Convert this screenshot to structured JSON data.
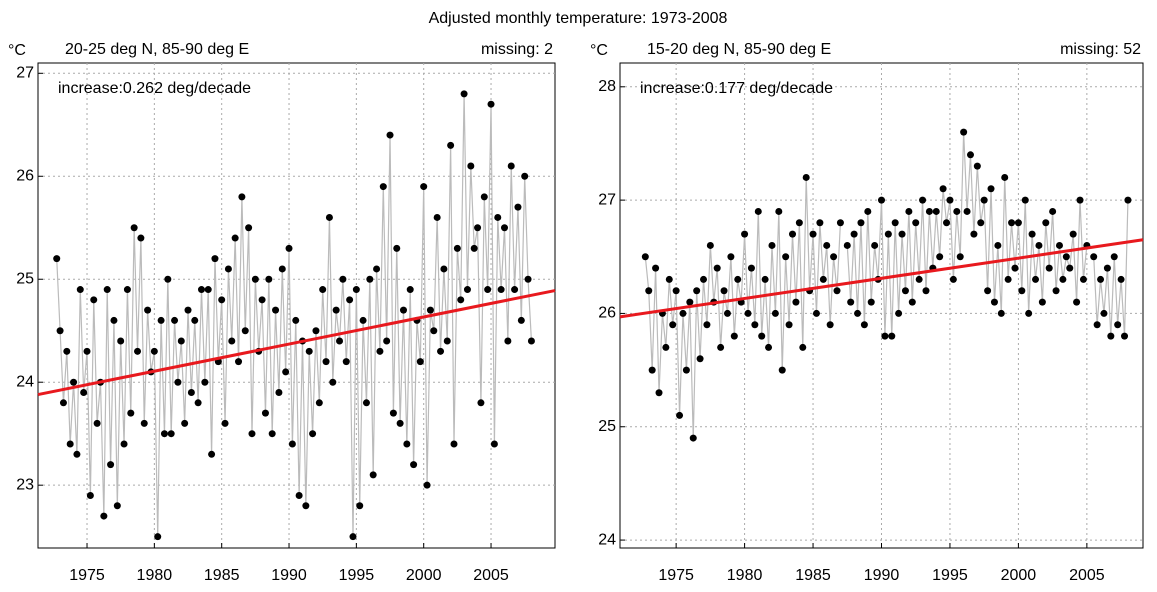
{
  "title": "Adjusted monthly temperature: 1973-2008",
  "chart_data": [
    {
      "type": "line",
      "title": "20-25 deg N, 85-90 deg E",
      "missing_label": "missing: 2",
      "y_unit": "°C",
      "annotation": "increase:0.262 deg/decade",
      "xlim": [
        1971.36,
        2009.75
      ],
      "ylim": [
        22.39,
        27.1
      ],
      "xticks": [
        1975,
        1980,
        1985,
        1990,
        1995,
        2000,
        2005
      ],
      "yticks": [
        23,
        24,
        25,
        26,
        27
      ],
      "grid": true,
      "x": [
        1972.75,
        1973,
        1973.25,
        1973.5,
        1973.75,
        1974,
        1974.25,
        1974.5,
        1974.75,
        1975,
        1975.25,
        1975.5,
        1975.75,
        1976,
        1976.25,
        1976.5,
        1976.75,
        1977,
        1977.25,
        1977.5,
        1977.75,
        1978,
        1978.25,
        1978.5,
        1978.75,
        1979,
        1979.25,
        1979.5,
        1979.75,
        1980,
        1980.25,
        1980.5,
        1980.75,
        1981,
        1981.25,
        1981.5,
        1981.75,
        1982,
        1982.25,
        1982.5,
        1982.75,
        1983,
        1983.25,
        1983.5,
        1983.75,
        1984,
        1984.25,
        1984.5,
        1984.75,
        1985,
        1985.25,
        1985.5,
        1985.75,
        1986,
        1986.25,
        1986.5,
        1986.75,
        1987,
        1987.25,
        1987.5,
        1987.75,
        1988,
        1988.25,
        1988.5,
        1988.75,
        1989,
        1989.25,
        1989.5,
        1989.75,
        1990,
        1990.25,
        1990.5,
        1990.75,
        1991,
        1991.25,
        1991.5,
        1991.75,
        1992,
        1992.25,
        1992.5,
        1992.75,
        1993,
        1993.25,
        1993.5,
        1993.75,
        1994,
        1994.25,
        1994.5,
        1994.75,
        1995,
        1995.25,
        1995.5,
        1995.75,
        1996,
        1996.25,
        1996.5,
        1996.75,
        1997,
        1997.25,
        1997.5,
        1997.75,
        1998,
        1998.25,
        1998.5,
        1998.75,
        1999,
        1999.25,
        1999.5,
        1999.75,
        2000,
        2000.25,
        2000.5,
        2000.75,
        2001,
        2001.25,
        2001.5,
        2001.75,
        2002,
        2002.25,
        2002.5,
        2002.75,
        2003,
        2003.25,
        2003.5,
        2003.75,
        2004,
        2004.25,
        2004.5,
        2004.75,
        2005,
        2005.25,
        2005.5,
        2005.75,
        2006,
        2006.25,
        2006.5,
        2006.75,
        2007,
        2007.25,
        2007.5,
        2007.75,
        2008
      ],
      "series": [
        {
          "color": "#000000",
          "line_color": "#bbbbbb",
          "values": [
            25.2,
            24.5,
            23.8,
            24.3,
            23.4,
            24.0,
            23.3,
            24.9,
            23.9,
            24.3,
            22.9,
            24.8,
            23.6,
            24.0,
            22.7,
            24.9,
            23.2,
            24.6,
            22.8,
            24.4,
            23.4,
            24.9,
            23.7,
            25.5,
            24.3,
            25.4,
            23.6,
            24.7,
            24.1,
            24.3,
            22.5,
            24.6,
            23.5,
            25.0,
            23.5,
            24.6,
            24.0,
            24.4,
            23.6,
            24.7,
            23.9,
            24.6,
            23.8,
            24.9,
            24.0,
            24.9,
            23.3,
            25.2,
            24.2,
            24.8,
            23.6,
            25.1,
            24.4,
            25.4,
            24.2,
            25.8,
            24.5,
            25.5,
            23.5,
            25.0,
            24.3,
            24.8,
            23.7,
            25.0,
            23.5,
            24.7,
            23.9,
            25.1,
            24.1,
            25.3,
            23.4,
            24.6,
            22.9,
            24.4,
            22.8,
            24.3,
            23.5,
            24.5,
            23.8,
            24.9,
            24.2,
            25.6,
            24.0,
            24.7,
            24.4,
            25.0,
            24.2,
            24.8,
            22.5,
            24.9,
            22.8,
            24.6,
            23.8,
            25.0,
            23.1,
            25.1,
            24.3,
            25.9,
            24.4,
            26.4,
            23.7,
            25.3,
            23.6,
            24.7,
            23.4,
            24.9,
            23.2,
            24.6,
            24.2,
            25.9,
            23.0,
            24.7,
            24.5,
            25.6,
            24.3,
            25.1,
            24.4,
            26.3,
            23.4,
            25.3,
            24.8,
            26.8,
            24.9,
            26.1,
            25.3,
            25.5,
            23.8,
            25.8,
            24.9,
            26.7,
            23.4,
            25.6,
            24.9,
            25.5,
            24.4,
            26.1,
            24.9,
            25.7,
            24.6,
            26.0,
            25.0,
            24.4
          ]
        }
      ],
      "trend": {
        "color": "#e8191e",
        "x": [
          1971.36,
          2009.75
        ],
        "values": [
          23.88,
          24.89
        ]
      }
    },
    {
      "type": "line",
      "title": "15-20 deg N, 85-90 deg E",
      "missing_label": "missing: 52",
      "y_unit": "°C",
      "annotation": "increase:0.177 deg/decade",
      "xlim": [
        1970.9,
        2009.1
      ],
      "ylim": [
        23.93,
        28.21
      ],
      "xticks": [
        1975,
        1980,
        1985,
        1990,
        1995,
        2000,
        2005
      ],
      "yticks": [
        24,
        25,
        26,
        27,
        28
      ],
      "grid": true,
      "x": [
        1972.75,
        1973,
        1973.25,
        1973.5,
        1973.75,
        1974,
        1974.25,
        1974.5,
        1974.75,
        1975,
        1975.25,
        1975.5,
        1975.75,
        1976,
        1976.25,
        1976.5,
        1976.75,
        1977,
        1977.25,
        1977.5,
        1977.75,
        1978,
        1978.25,
        1978.5,
        1978.75,
        1979,
        1979.25,
        1979.5,
        1979.75,
        1980,
        1980.25,
        1980.5,
        1980.75,
        1981,
        1981.25,
        1981.5,
        1981.75,
        1982,
        1982.25,
        1982.5,
        1982.75,
        1983,
        1983.25,
        1983.5,
        1983.75,
        1984,
        1984.25,
        1984.5,
        1984.75,
        1985,
        1985.25,
        1985.5,
        1985.75,
        1986,
        1986.25,
        1986.5,
        1986.75,
        1987,
        1987.25,
        1987.5,
        1987.75,
        1988,
        1988.25,
        1988.5,
        1988.75,
        1989,
        1989.25,
        1989.5,
        1989.75,
        1990,
        1990.25,
        1990.5,
        1990.75,
        1991,
        1991.25,
        1991.5,
        1991.75,
        1992,
        1992.25,
        1992.5,
        1992.75,
        1993,
        1993.25,
        1993.5,
        1993.75,
        1994,
        1994.25,
        1994.5,
        1994.75,
        1995,
        1995.25,
        1995.5,
        1995.75,
        1996,
        1996.25,
        1996.5,
        1996.75,
        1997,
        1997.25,
        1997.5,
        1997.75,
        1998,
        1998.25,
        1998.5,
        1998.75,
        1999,
        1999.25,
        1999.5,
        1999.75,
        2000,
        2000.25,
        2000.5,
        2000.75,
        2001,
        2001.25,
        2001.5,
        2001.75,
        2002,
        2002.25,
        2002.5,
        2002.75,
        2003,
        2003.25,
        2003.5,
        2003.75,
        2004,
        2004.25,
        2004.5,
        2004.75,
        2005,
        2005.25,
        2005.5,
        2005.75,
        2006,
        2006.25,
        2006.5,
        2006.75,
        2007,
        2007.25,
        2007.5,
        2007.75,
        2008
      ],
      "series": [
        {
          "color": "#000000",
          "line_color": "#bbbbbb",
          "values": [
            26.5,
            26.2,
            25.5,
            26.4,
            25.3,
            26.0,
            25.7,
            26.3,
            25.9,
            26.2,
            25.1,
            26.0,
            25.5,
            26.1,
            24.9,
            26.2,
            25.6,
            26.3,
            25.9,
            26.6,
            26.1,
            26.4,
            25.7,
            26.2,
            26.0,
            26.5,
            25.8,
            26.3,
            26.1,
            26.7,
            26.0,
            26.4,
            25.9,
            26.9,
            25.8,
            26.3,
            25.7,
            26.6,
            26.0,
            26.9,
            25.5,
            26.5,
            25.9,
            26.7,
            26.1,
            26.8,
            25.7,
            27.2,
            26.2,
            26.7,
            26.0,
            26.8,
            26.3,
            26.6,
            25.9,
            26.5,
            26.2,
            26.8,
            null,
            26.6,
            26.1,
            26.7,
            26.0,
            26.8,
            25.9,
            26.9,
            26.1,
            26.6,
            26.3,
            27.0,
            25.8,
            26.7,
            25.8,
            26.8,
            26.0,
            26.7,
            26.2,
            26.9,
            26.1,
            26.8,
            26.3,
            27.0,
            26.2,
            26.9,
            26.4,
            26.9,
            26.5,
            27.1,
            26.8,
            27.0,
            26.3,
            26.9,
            26.5,
            27.6,
            26.9,
            27.4,
            26.7,
            27.3,
            26.8,
            27.0,
            26.2,
            27.1,
            26.1,
            26.6,
            26.0,
            27.2,
            26.3,
            26.8,
            26.4,
            26.8,
            26.2,
            27.0,
            26.0,
            26.7,
            26.3,
            26.6,
            26.1,
            26.8,
            26.4,
            26.9,
            26.2,
            26.6,
            26.3,
            26.5,
            26.4,
            26.7,
            26.1,
            27.0,
            26.3,
            26.6,
            null,
            26.5,
            25.9,
            26.3,
            26.0,
            26.4,
            25.8,
            26.5,
            25.9,
            26.3,
            25.8,
            27.0
          ]
        }
      ],
      "trend": {
        "color": "#e8191e",
        "x": [
          1970.9,
          2009.1
        ],
        "values": [
          25.97,
          26.65
        ]
      }
    }
  ]
}
